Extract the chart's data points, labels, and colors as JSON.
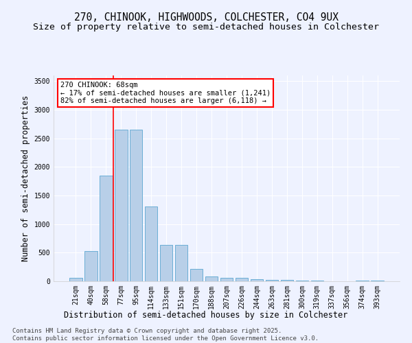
{
  "title": "270, CHINOOK, HIGHWOODS, COLCHESTER, CO4 9UX",
  "subtitle": "Size of property relative to semi-detached houses in Colchester",
  "xlabel": "Distribution of semi-detached houses by size in Colchester",
  "ylabel": "Number of semi-detached properties",
  "categories": [
    "21sqm",
    "40sqm",
    "58sqm",
    "77sqm",
    "95sqm",
    "114sqm",
    "133sqm",
    "151sqm",
    "170sqm",
    "188sqm",
    "207sqm",
    "226sqm",
    "244sqm",
    "263sqm",
    "281sqm",
    "300sqm",
    "319sqm",
    "337sqm",
    "356sqm",
    "374sqm",
    "393sqm"
  ],
  "values": [
    65,
    525,
    1850,
    2650,
    2650,
    1310,
    640,
    640,
    220,
    90,
    55,
    55,
    35,
    20,
    20,
    10,
    10,
    5,
    5,
    15,
    15
  ],
  "bar_color": "#b8cfe8",
  "bar_edge_color": "#6aaed6",
  "vline_position": 2.5,
  "vline_color": "red",
  "annotation_text": "270 CHINOOK: 68sqm\n← 17% of semi-detached houses are smaller (1,241)\n82% of semi-detached houses are larger (6,118) →",
  "ylim": [
    0,
    3600
  ],
  "yticks": [
    0,
    500,
    1000,
    1500,
    2000,
    2500,
    3000,
    3500
  ],
  "background_color": "#eef2ff",
  "plot_bg_color": "#eef2ff",
  "footer": "Contains HM Land Registry data © Crown copyright and database right 2025.\nContains public sector information licensed under the Open Government Licence v3.0.",
  "title_fontsize": 10.5,
  "subtitle_fontsize": 9.5,
  "axis_label_fontsize": 8.5,
  "tick_fontsize": 7,
  "footer_fontsize": 6.5
}
